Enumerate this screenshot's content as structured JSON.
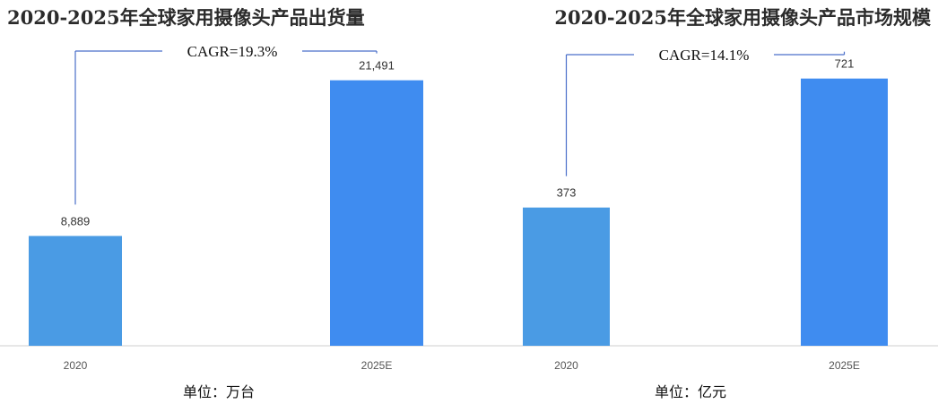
{
  "chart_data": [
    {
      "type": "bar",
      "title": "2020-2025年全球家用摄像头产品出货量",
      "categories": [
        "2020",
        "2025E"
      ],
      "values": [
        8889,
        21491
      ],
      "value_labels": [
        "8,889",
        "21,491"
      ],
      "ylim": [
        0,
        24000
      ],
      "annotation": "CAGR=19.3%",
      "unit": "单位：万台",
      "grid": false,
      "colors": [
        "#4a9be4",
        "#3f8cf0"
      ]
    },
    {
      "type": "bar",
      "title": "2020-2025年全球家用摄像头产品市场规模",
      "categories": [
        "2020",
        "2025E"
      ],
      "values": [
        373,
        721
      ],
      "value_labels": [
        "373",
        "721"
      ],
      "ylim": [
        0,
        800
      ],
      "annotation": "CAGR=14.1%",
      "unit": "单位：亿元",
      "grid": false,
      "colors": [
        "#4a9be4",
        "#3f8cf0"
      ]
    }
  ],
  "colors": {
    "bracket_line": "#4a6fc9",
    "axis_line": "#cfcfcf"
  }
}
